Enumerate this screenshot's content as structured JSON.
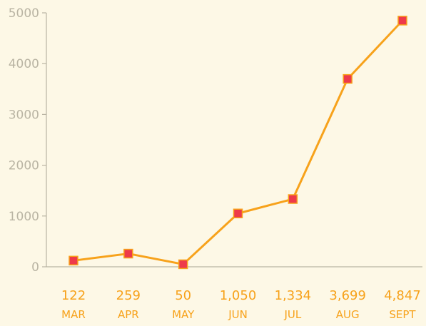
{
  "colors": {
    "background": "#fdf8e6",
    "line": "#f7a21b",
    "marker_fill": "#ee3a4a",
    "marker_stroke": "#f7a21b",
    "axis": "#b9b4a3",
    "labels": "#f7a21b"
  },
  "chart_data": {
    "type": "line",
    "categories": [
      "MAR",
      "APR",
      "MAY",
      "JUN",
      "JUL",
      "AUG",
      "SEPT"
    ],
    "value_labels": [
      "122",
      "259",
      "50",
      "1,050",
      "1,334",
      "3,699",
      "4,847"
    ],
    "series": [
      {
        "values": [
          122,
          259,
          50,
          1050,
          1334,
          3699,
          4847
        ]
      }
    ],
    "yticks": [
      "0",
      "1000",
      "2000",
      "3000",
      "4000",
      "5000"
    ],
    "ylim": [
      0,
      5000
    ],
    "grid": false,
    "legend": "none"
  }
}
